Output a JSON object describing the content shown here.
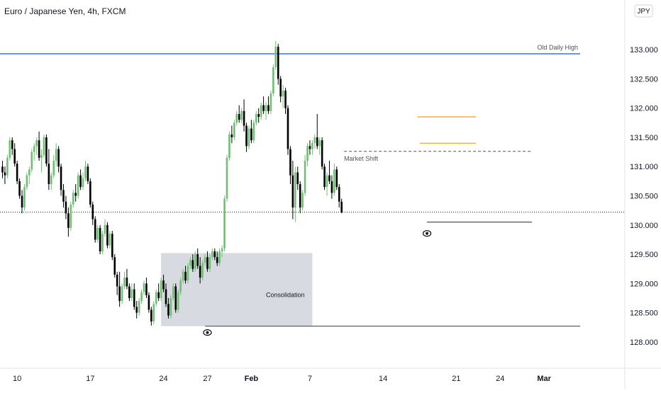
{
  "chart_data": {
    "type": "candlestick",
    "title": "Euro / Japanese Yen, 4h, FXCM",
    "currency_badge": "JPY",
    "y_axis": {
      "ticks": [
        "128.000",
        "128.500",
        "129.000",
        "129.500",
        "130.000",
        "130.500",
        "131.000",
        "131.500",
        "132.000",
        "132.500",
        "133.000"
      ],
      "tick_values": [
        128.0,
        128.5,
        129.0,
        129.5,
        130.0,
        130.5,
        131.0,
        131.5,
        132.0,
        132.5,
        133.0
      ],
      "range": [
        127.55,
        133.85
      ],
      "position": "right"
    },
    "x_axis": {
      "ticks": [
        {
          "label": "10",
          "bold": false,
          "idx": 6
        },
        {
          "label": "17",
          "bold": false,
          "idx": 36
        },
        {
          "label": "24",
          "bold": false,
          "idx": 66
        },
        {
          "label": "27",
          "bold": false,
          "idx": 84
        },
        {
          "label": "Feb",
          "bold": true,
          "idx": 102
        },
        {
          "label": "7",
          "bold": false,
          "idx": 126
        },
        {
          "label": "14",
          "bold": false,
          "idx": 156
        },
        {
          "label": "21",
          "bold": false,
          "idx": 186
        },
        {
          "label": "24",
          "bold": false,
          "idx": 204
        },
        {
          "label": "Mar",
          "bold": true,
          "idx": 222
        }
      ]
    },
    "colors": {
      "up": "#6fbf73",
      "down": "#000000",
      "blue_line": "#2962ff",
      "orange_line": "#f5a623",
      "zone": "#d1d4dc"
    },
    "annotations": {
      "old_daily_high": {
        "label": "Old Daily High",
        "price": 132.93
      },
      "market_shift": {
        "label": "Market Shift",
        "price": 131.26
      },
      "consolidation": {
        "label": "Consolidation",
        "price_top": 129.52,
        "price_bottom": 128.27
      },
      "low_line_left": {
        "price": 128.27
      },
      "low_line_right": {
        "price": 130.05
      },
      "orange_levels": [
        131.85,
        131.4
      ],
      "current_price": 130.22
    },
    "ohlc": [
      [
        131.0,
        131.1,
        130.8,
        130.9
      ],
      [
        130.9,
        131.0,
        130.7,
        130.85
      ],
      [
        130.85,
        131.2,
        130.8,
        131.15
      ],
      [
        131.15,
        131.5,
        131.1,
        131.45
      ],
      [
        131.45,
        131.5,
        131.2,
        131.3
      ],
      [
        131.3,
        131.4,
        131.0,
        131.05
      ],
      [
        131.05,
        131.1,
        130.7,
        130.75
      ],
      [
        130.75,
        130.8,
        130.45,
        130.5
      ],
      [
        130.5,
        130.6,
        130.2,
        130.3
      ],
      [
        130.3,
        130.7,
        130.25,
        130.65
      ],
      [
        130.65,
        130.9,
        130.6,
        130.85
      ],
      [
        130.85,
        131.0,
        130.7,
        130.95
      ],
      [
        130.95,
        131.3,
        130.9,
        131.25
      ],
      [
        131.25,
        131.4,
        131.1,
        131.35
      ],
      [
        131.35,
        131.5,
        131.2,
        131.45
      ],
      [
        131.45,
        131.6,
        131.1,
        131.15
      ],
      [
        131.15,
        131.3,
        130.9,
        131.2
      ],
      [
        131.2,
        131.55,
        131.15,
        131.5
      ],
      [
        131.5,
        131.55,
        131.0,
        131.05
      ],
      [
        131.05,
        131.3,
        130.6,
        130.7
      ],
      [
        130.7,
        130.9,
        130.6,
        130.85
      ],
      [
        130.85,
        131.2,
        130.8,
        131.1
      ],
      [
        131.1,
        131.4,
        131.0,
        131.3
      ],
      [
        131.3,
        131.35,
        130.9,
        131.0
      ],
      [
        131.0,
        131.05,
        130.5,
        130.6
      ],
      [
        130.6,
        130.7,
        130.3,
        130.4
      ],
      [
        130.4,
        130.5,
        130.1,
        130.2
      ],
      [
        130.2,
        130.3,
        129.8,
        129.95
      ],
      [
        129.95,
        130.4,
        129.9,
        130.35
      ],
      [
        130.35,
        130.6,
        130.3,
        130.55
      ],
      [
        130.55,
        130.7,
        130.4,
        130.5
      ],
      [
        130.5,
        130.9,
        130.45,
        130.85
      ],
      [
        130.85,
        130.95,
        130.6,
        130.65
      ],
      [
        130.65,
        130.9,
        130.6,
        130.8
      ],
      [
        130.8,
        131.1,
        130.75,
        131.0
      ],
      [
        131.0,
        131.05,
        130.7,
        130.75
      ],
      [
        130.75,
        130.8,
        130.3,
        130.35
      ],
      [
        130.35,
        130.4,
        130.0,
        130.1
      ],
      [
        130.1,
        130.15,
        129.7,
        129.75
      ],
      [
        129.75,
        130.0,
        129.7,
        129.95
      ],
      [
        129.95,
        130.0,
        129.5,
        129.55
      ],
      [
        129.55,
        129.9,
        129.5,
        129.85
      ],
      [
        129.85,
        130.1,
        129.8,
        130.0
      ],
      [
        130.0,
        130.05,
        129.6,
        129.65
      ],
      [
        129.65,
        129.9,
        129.6,
        129.85
      ],
      [
        129.85,
        129.9,
        129.4,
        129.45
      ],
      [
        129.45,
        129.5,
        129.1,
        129.15
      ],
      [
        129.15,
        129.2,
        128.8,
        128.95
      ],
      [
        128.95,
        129.2,
        128.6,
        128.7
      ],
      [
        128.7,
        129.0,
        128.65,
        128.95
      ],
      [
        128.95,
        129.2,
        128.9,
        129.1
      ],
      [
        129.1,
        129.25,
        128.9,
        128.95
      ],
      [
        128.95,
        129.0,
        128.7,
        128.75
      ],
      [
        128.75,
        129.0,
        128.7,
        128.9
      ],
      [
        128.9,
        129.0,
        128.55,
        128.6
      ],
      [
        128.6,
        128.7,
        128.4,
        128.5
      ],
      [
        128.5,
        128.75,
        128.45,
        128.7
      ],
      [
        128.7,
        128.9,
        128.65,
        128.85
      ],
      [
        128.85,
        129.05,
        128.8,
        129.0
      ],
      [
        129.0,
        129.1,
        128.75,
        128.8
      ],
      [
        128.8,
        128.85,
        128.5,
        128.55
      ],
      [
        128.55,
        128.6,
        128.28,
        128.35
      ],
      [
        128.35,
        128.7,
        128.3,
        128.65
      ],
      [
        128.65,
        128.9,
        128.6,
        128.85
      ],
      [
        128.85,
        129.0,
        128.7,
        128.75
      ],
      [
        128.75,
        129.1,
        128.7,
        129.05
      ],
      [
        129.05,
        129.15,
        128.85,
        128.9
      ],
      [
        128.9,
        129.0,
        128.6,
        128.65
      ],
      [
        128.65,
        128.75,
        128.4,
        128.45
      ],
      [
        128.45,
        128.8,
        128.4,
        128.75
      ],
      [
        128.75,
        129.0,
        128.7,
        128.95
      ],
      [
        128.95,
        129.0,
        128.5,
        128.55
      ],
      [
        128.55,
        128.9,
        128.5,
        128.85
      ],
      [
        128.85,
        129.1,
        128.8,
        129.05
      ],
      [
        129.05,
        129.25,
        129.0,
        129.2
      ],
      [
        129.2,
        129.3,
        129.0,
        129.05
      ],
      [
        129.05,
        129.35,
        129.0,
        129.3
      ],
      [
        129.3,
        129.45,
        129.25,
        129.4
      ],
      [
        129.4,
        129.5,
        129.2,
        129.25
      ],
      [
        129.25,
        129.55,
        129.2,
        129.5
      ],
      [
        129.5,
        129.6,
        129.25,
        129.3
      ],
      [
        129.3,
        129.45,
        129.0,
        129.1
      ],
      [
        129.1,
        129.4,
        129.05,
        129.35
      ],
      [
        129.35,
        129.5,
        129.3,
        129.45
      ],
      [
        129.45,
        129.55,
        129.2,
        129.25
      ],
      [
        129.25,
        129.5,
        129.2,
        129.45
      ],
      [
        129.45,
        129.6,
        129.4,
        129.55
      ],
      [
        129.55,
        129.6,
        129.4,
        129.45
      ],
      [
        129.45,
        129.55,
        129.3,
        129.35
      ],
      [
        129.35,
        129.6,
        129.3,
        129.55
      ],
      [
        129.55,
        129.65,
        129.45,
        129.6
      ],
      [
        129.6,
        130.5,
        129.55,
        130.45
      ],
      [
        130.45,
        131.2,
        130.4,
        131.15
      ],
      [
        131.15,
        131.6,
        131.1,
        131.55
      ],
      [
        131.55,
        131.7,
        131.4,
        131.5
      ],
      [
        131.5,
        131.8,
        131.45,
        131.75
      ],
      [
        131.75,
        131.95,
        131.7,
        131.9
      ],
      [
        131.9,
        132.05,
        131.75,
        131.8
      ],
      [
        131.8,
        132.0,
        131.75,
        131.95
      ],
      [
        131.95,
        132.15,
        131.6,
        131.7
      ],
      [
        131.7,
        131.75,
        131.25,
        131.35
      ],
      [
        131.35,
        131.7,
        131.3,
        131.65
      ],
      [
        131.65,
        131.8,
        131.4,
        131.45
      ],
      [
        131.45,
        131.8,
        131.4,
        131.75
      ],
      [
        131.75,
        131.95,
        131.7,
        131.9
      ],
      [
        131.9,
        132.0,
        131.75,
        131.85
      ],
      [
        131.85,
        132.1,
        131.8,
        132.05
      ],
      [
        132.05,
        132.2,
        131.9,
        131.95
      ],
      [
        131.95,
        132.1,
        131.8,
        132.05
      ],
      [
        132.05,
        132.2,
        131.9,
        131.95
      ],
      [
        131.95,
        132.3,
        131.9,
        132.25
      ],
      [
        132.25,
        132.75,
        132.2,
        132.7
      ],
      [
        132.7,
        133.15,
        132.65,
        133.05
      ],
      [
        133.05,
        133.1,
        132.4,
        132.5
      ],
      [
        132.5,
        132.55,
        132.1,
        132.2
      ],
      [
        132.2,
        132.4,
        132.0,
        132.3
      ],
      [
        132.3,
        132.35,
        131.9,
        132.0
      ],
      [
        132.0,
        132.05,
        131.2,
        131.3
      ],
      [
        131.3,
        131.35,
        130.7,
        130.85
      ],
      [
        130.85,
        131.1,
        130.1,
        130.3
      ],
      [
        130.3,
        131.0,
        130.05,
        130.9
      ],
      [
        130.9,
        131.0,
        130.6,
        130.7
      ],
      [
        130.7,
        130.75,
        130.2,
        130.3
      ],
      [
        130.3,
        130.6,
        130.25,
        130.55
      ],
      [
        130.55,
        131.2,
        130.5,
        131.1
      ],
      [
        131.1,
        131.4,
        131.0,
        131.35
      ],
      [
        131.35,
        131.45,
        131.2,
        131.3
      ],
      [
        131.3,
        131.45,
        131.2,
        131.4
      ],
      [
        131.4,
        131.55,
        131.3,
        131.5
      ],
      [
        131.5,
        131.9,
        131.3,
        131.35
      ],
      [
        131.35,
        131.5,
        131.2,
        131.45
      ],
      [
        131.45,
        131.5,
        130.95,
        131.0
      ],
      [
        131.0,
        131.05,
        130.6,
        130.65
      ],
      [
        130.65,
        130.9,
        130.5,
        130.85
      ],
      [
        130.85,
        131.1,
        130.7,
        130.75
      ],
      [
        130.75,
        130.85,
        130.45,
        130.55
      ],
      [
        130.55,
        131.05,
        130.5,
        130.95
      ],
      [
        130.95,
        131.0,
        130.6,
        130.65
      ],
      [
        130.65,
        130.7,
        130.3,
        130.4
      ],
      [
        130.4,
        130.45,
        130.2,
        130.22
      ]
    ]
  }
}
